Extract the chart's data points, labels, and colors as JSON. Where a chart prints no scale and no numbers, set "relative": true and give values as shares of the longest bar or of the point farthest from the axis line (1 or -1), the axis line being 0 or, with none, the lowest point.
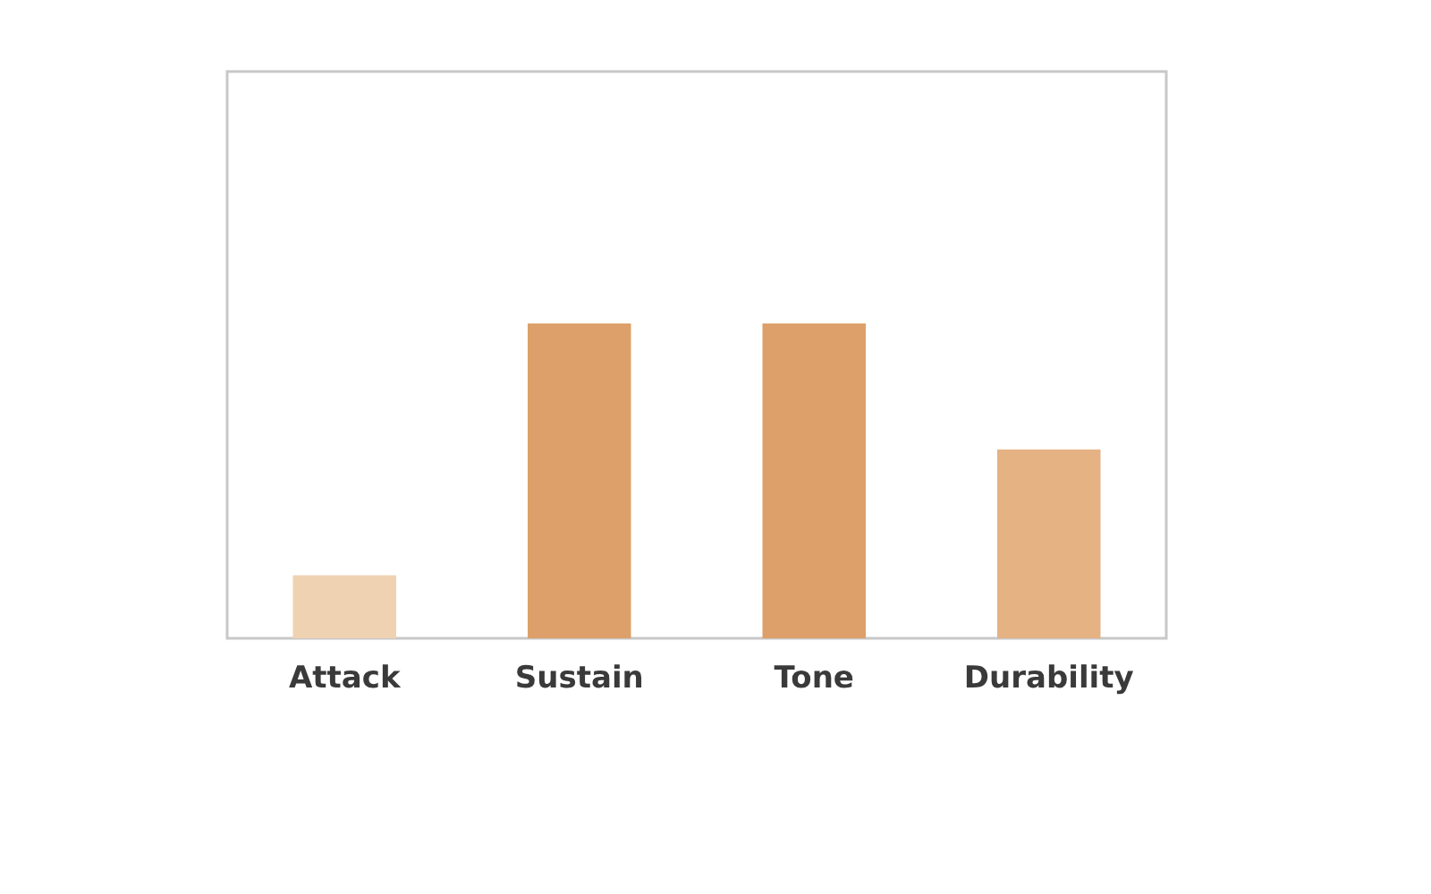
{
  "chart_data": {
    "type": "bar",
    "relative": true,
    "categories": [
      "Attack",
      "Sustain",
      "Tone",
      "Durability"
    ],
    "values": [
      0.2,
      1,
      1,
      0.6
    ],
    "colors": [
      "#efd2b2",
      "#dda06a",
      "#dda06a",
      "#e4b283"
    ]
  }
}
